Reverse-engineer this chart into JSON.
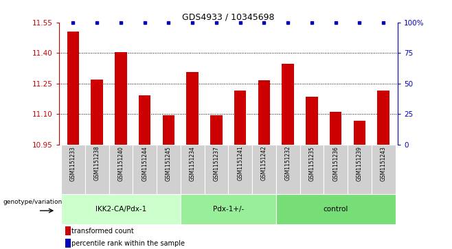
{
  "title": "GDS4933 / 10345698",
  "samples": [
    "GSM1151233",
    "GSM1151238",
    "GSM1151240",
    "GSM1151244",
    "GSM1151245",
    "GSM1151234",
    "GSM1151237",
    "GSM1151241",
    "GSM1151242",
    "GSM1151232",
    "GSM1151235",
    "GSM1151236",
    "GSM1151239",
    "GSM1151243"
  ],
  "bar_values": [
    11.505,
    11.27,
    11.405,
    11.19,
    11.095,
    11.305,
    11.095,
    11.215,
    11.265,
    11.345,
    11.185,
    11.11,
    11.065,
    11.215
  ],
  "ylim_left": [
    10.95,
    11.55
  ],
  "yticks_left": [
    10.95,
    11.1,
    11.25,
    11.4,
    11.55
  ],
  "ylim_right": [
    0,
    100
  ],
  "yticks_right": [
    0,
    25,
    50,
    75,
    100
  ],
  "bar_color": "#cc0000",
  "dot_color": "#0000bb",
  "groups": [
    {
      "label": "IKK2-CA/Pdx-1",
      "start": 0,
      "end": 5,
      "color": "#ccffcc"
    },
    {
      "label": "Pdx-1+/-",
      "start": 5,
      "end": 9,
      "color": "#99ee99"
    },
    {
      "label": "control",
      "start": 9,
      "end": 14,
      "color": "#77dd77"
    }
  ],
  "genotype_label": "genotype/variation",
  "legend_bar_label": "transformed count",
  "legend_dot_label": "percentile rank within the sample",
  "background_color": "#ffffff",
  "axis_color_left": "#cc0000",
  "axis_color_right": "#0000bb",
  "tick_label_area_color": "#d0d0d0",
  "grid_dotted_color": "#000000",
  "title_fontsize": 9,
  "bar_width": 0.5
}
